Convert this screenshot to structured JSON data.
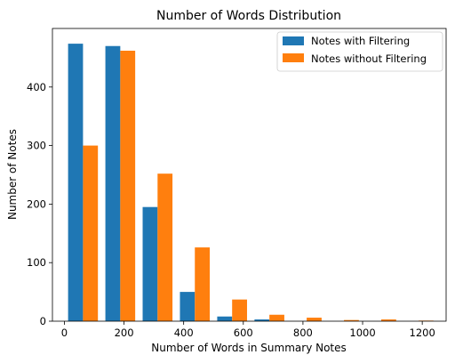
{
  "chart_data": {
    "type": "bar",
    "title": "Number of Words Distribution",
    "xlabel": "Number of Words in Summary Notes",
    "ylabel": "Number of Notes",
    "xlim": [
      -40,
      1280
    ],
    "ylim": [
      0,
      500
    ],
    "xticks": [
      0,
      200,
      400,
      600,
      800,
      1000,
      1200
    ],
    "yticks": [
      0,
      100,
      200,
      300,
      400
    ],
    "bin_edges": [
      0,
      125,
      250,
      375,
      500,
      625,
      750,
      875,
      1000,
      1125,
      1250
    ],
    "legend_position": "top-right",
    "series": [
      {
        "name": "Notes with Filtering",
        "color": "#1f77b4",
        "values": [
          474,
          470,
          195,
          50,
          8,
          3,
          0,
          0,
          0,
          0
        ]
      },
      {
        "name": "Notes without Filtering",
        "color": "#ff7f0e",
        "values": [
          300,
          462,
          252,
          126,
          37,
          11,
          6,
          2,
          3,
          1
        ]
      }
    ]
  }
}
